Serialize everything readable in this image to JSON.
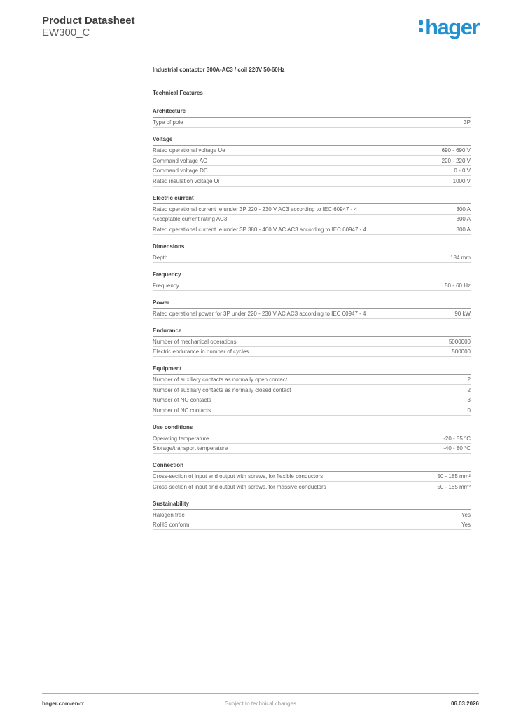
{
  "header": {
    "title": "Product Datasheet",
    "subtitle": "EW300_C",
    "logo_text": "hager"
  },
  "document": {
    "product_title": "Industrial contactor 300A-AC3 / coil 220V 50-60Hz",
    "features_heading": "Technical Features"
  },
  "sections": [
    {
      "title": "Architecture",
      "rows": [
        {
          "label": "Type of pole",
          "value": "3P"
        }
      ]
    },
    {
      "title": "Voltage",
      "rows": [
        {
          "label": "Rated operational voltage Ue",
          "value": "690 - 690 V"
        },
        {
          "label": "Command voltage AC",
          "value": "220 - 220 V"
        },
        {
          "label": "Command voltage DC",
          "value": "0 - 0 V"
        },
        {
          "label": "Rated insulation voltage Ui",
          "value": "1000 V"
        }
      ]
    },
    {
      "title": "Electric current",
      "rows": [
        {
          "label": "Rated operational current Ie under 3P 220 - 230 V AC3 according to IEC 60947 - 4",
          "value": "300 A"
        },
        {
          "label": "Acceptable current rating AC3",
          "value": "300 A"
        },
        {
          "label": "Rated operational current Ie under 3P 380 - 400 V AC AC3 according to IEC 60947 - 4",
          "value": "300 A"
        }
      ]
    },
    {
      "title": "Dimensions",
      "rows": [
        {
          "label": "Depth",
          "value": "184 mm"
        }
      ]
    },
    {
      "title": "Frequency",
      "rows": [
        {
          "label": "Frequency",
          "value": "50 - 60 Hz"
        }
      ]
    },
    {
      "title": "Power",
      "rows": [
        {
          "label": "Rated operational power for 3P under 220 - 230 V AC AC3 according to IEC 60947 - 4",
          "value": "90 kW"
        }
      ]
    },
    {
      "title": "Endurance",
      "rows": [
        {
          "label": "Number of mechanical operations",
          "value": "5000000"
        },
        {
          "label": "Electric endurance in number of cycles",
          "value": "500000"
        }
      ]
    },
    {
      "title": "Equipment",
      "rows": [
        {
          "label": "Number of auxiliary contacts as normally open contact",
          "value": "2"
        },
        {
          "label": "Number of auxiliary contacts as normally closed contact",
          "value": "2"
        },
        {
          "label": "Number of NO contacts",
          "value": "3"
        },
        {
          "label": "Number of NC contacts",
          "value": "0"
        }
      ]
    },
    {
      "title": "Use conditions",
      "rows": [
        {
          "label": "Operating temperature",
          "value": "-20 - 55 °C"
        },
        {
          "label": "Storage/transport temperature",
          "value": "-40 - 80 °C"
        }
      ]
    },
    {
      "title": "Connection",
      "rows": [
        {
          "label": "Cross-section of input and output with screws, for flexible conductors",
          "value": "50 - 185 mm²"
        },
        {
          "label": "Cross-section of input and output with screws, for massive conductors",
          "value": "50 - 185 mm²"
        }
      ]
    },
    {
      "title": "Sustainability",
      "rows": [
        {
          "label": "Halogen free",
          "value": "Yes"
        },
        {
          "label": "RoHS conform",
          "value": "Yes"
        }
      ]
    }
  ],
  "footer": {
    "url": "hager.com/en-tr",
    "note": "Subject to technical changes",
    "date": "06.03.2026"
  },
  "colors": {
    "brand_blue": "#2191d2",
    "heading_text": "#3d3d3c",
    "body_text": "#5f5f5e"
  }
}
